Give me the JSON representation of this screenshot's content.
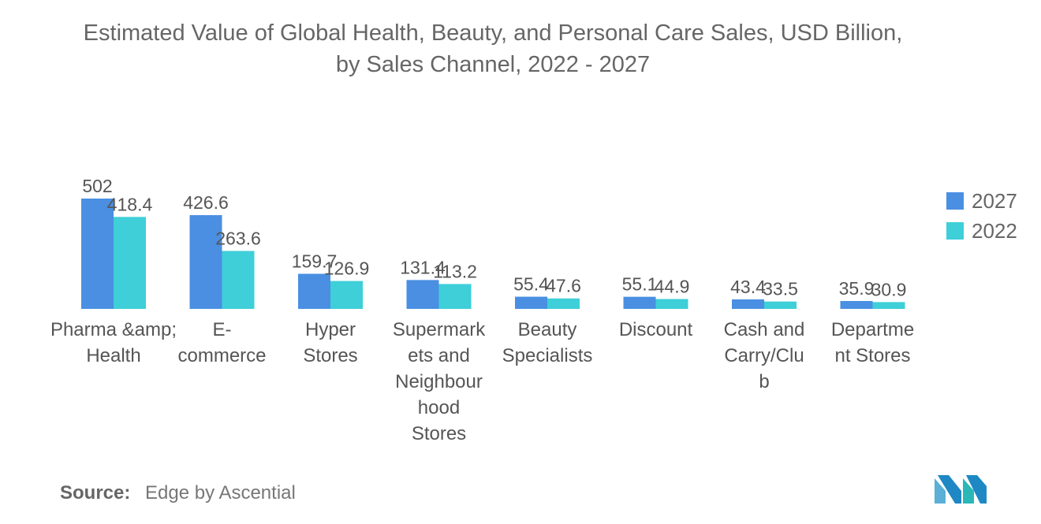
{
  "chart_data": {
    "type": "bar",
    "title": "Estimated Value of Global Health, Beauty, and Personal Care Sales, USD Billion, by Sales Channel, 2022 - 2027",
    "categories": [
      [
        "Pharma &amp;",
        "Health"
      ],
      [
        "E-",
        "commerce"
      ],
      [
        "Hyper",
        "Stores"
      ],
      [
        "Supermark",
        "ets and",
        "Neighbour",
        "hood",
        "Stores"
      ],
      [
        "Beauty",
        "Specialists"
      ],
      [
        "Discount"
      ],
      [
        "Cash and",
        "Carry/Clu",
        "b"
      ],
      [
        "Departme",
        "nt Stores"
      ]
    ],
    "series": [
      {
        "name": "2027",
        "color": "#4a8fe2",
        "values": [
          502,
          426.6,
          159.7,
          131.4,
          55.4,
          55.1,
          43.4,
          35.9
        ]
      },
      {
        "name": "2022",
        "color": "#3ecfd8",
        "values": [
          418.4,
          263.6,
          126.9,
          113.2,
          47.6,
          44.9,
          33.5,
          30.9
        ]
      }
    ],
    "value_labels": [
      [
        "502",
        "426.6",
        "159.7",
        "131.4",
        "55.4",
        "55.1",
        "43.4",
        "35.9"
      ],
      [
        "418.4",
        "263.6",
        "126.9",
        "113.2",
        "47.6",
        "44.9",
        "33.5",
        "30.9"
      ]
    ],
    "ylim": [
      0,
      502
    ],
    "grid": false,
    "legend_position": "right"
  },
  "legend": {
    "items": [
      "2027",
      "2022"
    ]
  },
  "source": {
    "label": "Source:",
    "text": "Edge by Ascential"
  },
  "logo": {
    "colors": [
      "#5ab0d6",
      "#1e88c4",
      "#2ab7b7"
    ]
  }
}
